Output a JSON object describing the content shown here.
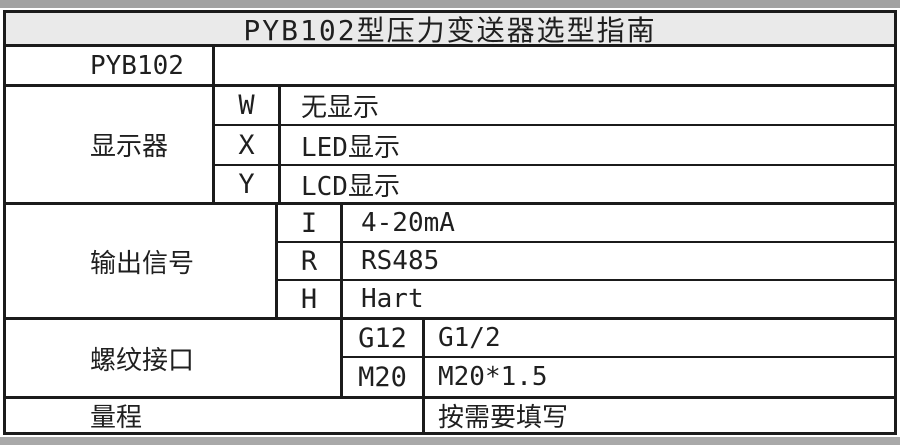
{
  "page": {
    "background": "#ffffff",
    "top_strip_color": "#a2a2a2",
    "bottom_strip_color": "#a9a9a9"
  },
  "table": {
    "title": "PYB102型压力变送器选型指南",
    "title_bg": "#eaeaea",
    "border_color": "#1b1b1b",
    "model_row": {
      "label": "PYB102",
      "value": ""
    },
    "sections": [
      {
        "label": "显示器",
        "options": [
          {
            "code": "W",
            "desc": "无显示"
          },
          {
            "code": "X",
            "desc": "LED显示"
          },
          {
            "code": "Y",
            "desc": "LCD显示"
          }
        ]
      },
      {
        "label": "输出信号",
        "options": [
          {
            "code": "I",
            "desc": "4-20mA"
          },
          {
            "code": "R",
            "desc": "RS485"
          },
          {
            "code": "H",
            "desc": "Hart"
          }
        ]
      },
      {
        "label": "螺纹接口",
        "options": [
          {
            "code": "G12",
            "desc": "G1/2"
          },
          {
            "code": "M20",
            "desc": "M20*1.5"
          }
        ]
      }
    ],
    "range_row": {
      "label": "量程",
      "value": "按需要填写"
    }
  }
}
